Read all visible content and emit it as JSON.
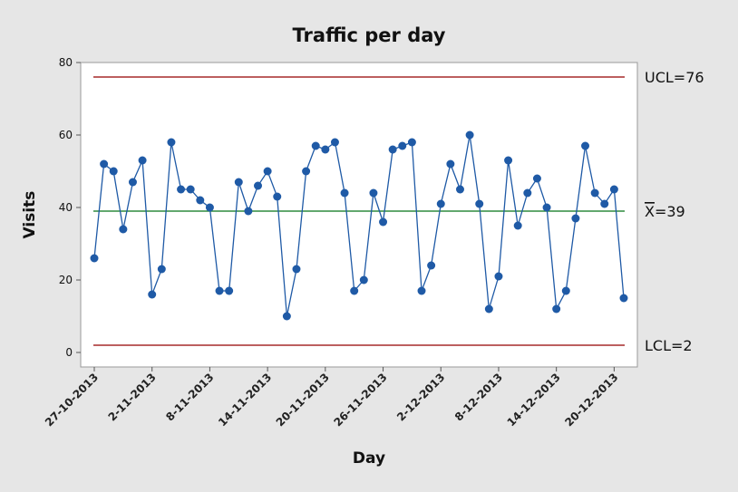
{
  "chart_data": {
    "type": "line",
    "title": "Traffic per day",
    "xlabel": "Day",
    "ylabel": "Visits",
    "ylim": [
      -4,
      80
    ],
    "yticks": [
      0,
      20,
      40,
      60,
      80
    ],
    "x_tick_labels": [
      "27-10-2013",
      "2-11-2013",
      "8-11-2013",
      "14-11-2013",
      "20-11-2013",
      "26-11-2013",
      "2-12-2013",
      "8-12-2013",
      "14-12-2013",
      "20-12-2013"
    ],
    "x_start_date": "27-10-2013",
    "series": [
      {
        "name": "",
        "color": "#1f5aa6",
        "values": [
          26,
          52,
          50,
          34,
          47,
          53,
          16,
          23,
          58,
          45,
          45,
          42,
          40,
          17,
          17,
          47,
          39,
          46,
          50,
          43,
          10,
          23,
          50,
          57,
          56,
          58,
          44,
          17,
          20,
          44,
          36,
          56,
          57,
          58,
          17,
          24,
          41,
          52,
          45,
          60,
          41,
          12,
          21,
          53,
          35,
          44,
          48,
          40,
          12,
          17,
          37,
          57,
          44,
          41,
          45,
          15
        ]
      }
    ],
    "reference_lines": [
      {
        "name": "UCL",
        "label": "UCL=76",
        "value": 76,
        "color": "#a52a2a"
      },
      {
        "name": "mean",
        "label_bar": "X",
        "label_rest": "=39",
        "value": 39,
        "color": "#2e8b3e"
      },
      {
        "name": "LCL",
        "label": "LCL=2",
        "value": 2,
        "color": "#a52a2a"
      }
    ],
    "grid": false,
    "legend": "none"
  }
}
